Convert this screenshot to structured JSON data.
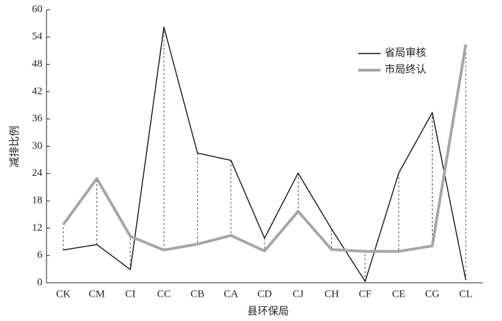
{
  "chart_data": {
    "type": "line",
    "x_label": "县环保局",
    "y_label": "减排比例",
    "categories": [
      "CK",
      "CM",
      "CI",
      "CC",
      "CB",
      "CA",
      "CD",
      "CJ",
      "CH",
      "CF",
      "CE",
      "CG",
      "CL"
    ],
    "series": [
      {
        "name": "省局审核",
        "color": "#111111",
        "values": [
          7.2,
          8.4,
          2.9,
          56.2,
          28.5,
          26.9,
          9.8,
          24.1,
          11.8,
          0.3,
          24.1,
          37.4,
          0.6
        ]
      },
      {
        "name": "市局终认",
        "color": "#a6a6a6",
        "values": [
          12.8,
          22.9,
          10.2,
          7.2,
          8.5,
          10.4,
          7.0,
          15.7,
          7.3,
          6.9,
          6.9,
          8.1,
          52.4
        ]
      }
    ],
    "ylim": [
      0,
      60
    ],
    "yticks": [
      0,
      6,
      12,
      18,
      24,
      30,
      36,
      42,
      48,
      54,
      60
    ],
    "legend": "upper right"
  }
}
